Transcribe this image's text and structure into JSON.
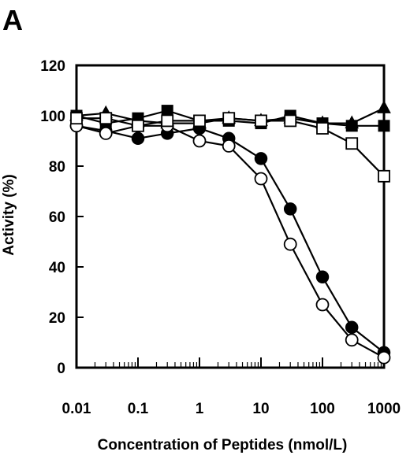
{
  "panel_label": "A",
  "chart_data": {
    "type": "line",
    "title": "",
    "xlabel": "Concentration of Peptides (nmol/L)",
    "ylabel": "Activity (%)",
    "x_scale": "log",
    "xlim": [
      0.01,
      1000
    ],
    "ylim": [
      0,
      120
    ],
    "x_tick_labels": [
      "0.01",
      "0.1",
      "1",
      "10",
      "100",
      "1000"
    ],
    "y_tick_labels": [
      "0",
      "20",
      "40",
      "60",
      "80",
      "100",
      "120"
    ],
    "grid": false,
    "legend": "none",
    "x": [
      0.01,
      0.03,
      0.1,
      0.3,
      1,
      3,
      10,
      30,
      100,
      300,
      1000
    ],
    "series": [
      {
        "marker": "filled-triangle",
        "values": [
          100,
          101,
          98,
          97,
          97,
          99,
          98,
          99,
          97,
          97,
          103
        ]
      },
      {
        "marker": "filled-square",
        "values": [
          100,
          97,
          99,
          102,
          98,
          98,
          97,
          100,
          97,
          96,
          96
        ]
      },
      {
        "marker": "filled-circle",
        "values": [
          96,
          94,
          91,
          93,
          95,
          91,
          83,
          63,
          36,
          16,
          6
        ]
      },
      {
        "marker": "open-circle",
        "values": [
          96,
          93,
          96,
          96,
          90,
          88,
          75,
          49,
          25,
          11,
          4
        ]
      },
      {
        "marker": "open-square",
        "values": [
          99,
          99,
          96,
          98,
          98,
          99,
          98,
          98,
          95,
          89,
          76
        ]
      }
    ]
  }
}
